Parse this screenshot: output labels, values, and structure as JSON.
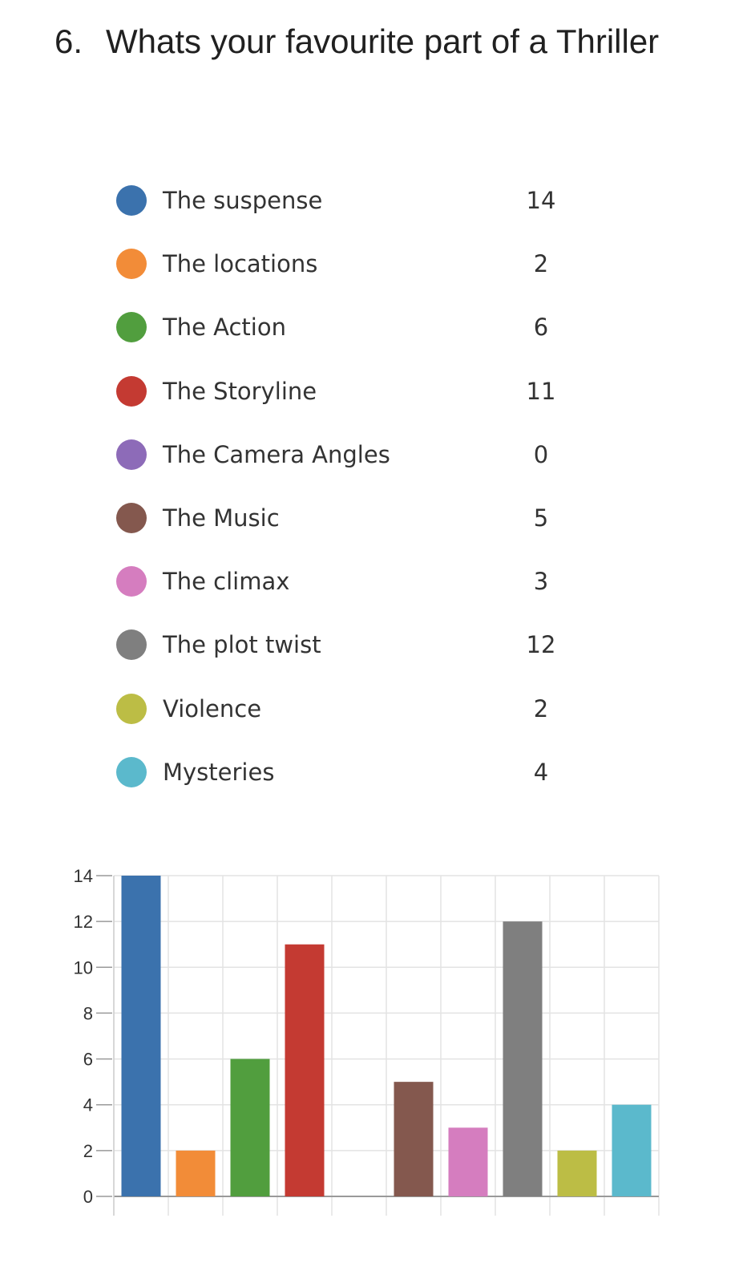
{
  "question": {
    "number": "6.",
    "title": "Whats your favourite part of a Thriller"
  },
  "legend": [
    {
      "label": "The suspense",
      "count": "14",
      "color": "#3b72ad"
    },
    {
      "label": "The locations",
      "count": "2",
      "color": "#f28c38"
    },
    {
      "label": "The Action",
      "count": "6",
      "color": "#519e3e"
    },
    {
      "label": "The Storyline",
      "count": "11",
      "color": "#c43a32"
    },
    {
      "label": "The Camera Angles",
      "count": "0",
      "color": "#8d6bb8"
    },
    {
      "label": "The Music",
      "count": "5",
      "color": "#84584e"
    },
    {
      "label": "The climax",
      "count": "3",
      "color": "#d57dbf"
    },
    {
      "label": "The plot twist",
      "count": "12",
      "color": "#7f7f7f"
    },
    {
      "label": "Violence",
      "count": "2",
      "color": "#bcbd45"
    },
    {
      "label": "Mysteries",
      "count": "4",
      "color": "#5bb9cc"
    }
  ],
  "chart_data": {
    "type": "bar",
    "categories": [
      "The suspense",
      "The locations",
      "The Action",
      "The Storyline",
      "The Camera Angles",
      "The Music",
      "The climax",
      "The plot twist",
      "Violence",
      "Mysteries"
    ],
    "values": [
      14,
      2,
      6,
      11,
      0,
      5,
      3,
      12,
      2,
      4
    ],
    "colors": [
      "#3b72ad",
      "#f28c38",
      "#519e3e",
      "#c43a32",
      "#8d6bb8",
      "#84584e",
      "#d57dbf",
      "#7f7f7f",
      "#bcbd45",
      "#5bb9cc"
    ],
    "yticks": [
      0,
      2,
      4,
      6,
      8,
      10,
      12,
      14
    ],
    "ylim": [
      0,
      14
    ],
    "grid": true,
    "legend": "above chart"
  }
}
